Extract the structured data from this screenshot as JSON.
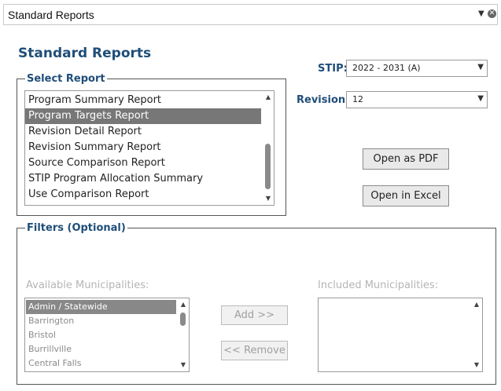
{
  "window": {
    "title": "Standard Reports"
  },
  "page": {
    "heading": "Standard Reports"
  },
  "select_report": {
    "legend": "Select Report",
    "items": [
      "Program Summary Report",
      "Program Targets Report",
      "Revision Detail Report",
      "Revision Summary Report",
      "Source Comparison Report",
      "STIP Program Allocation Summary",
      "Use Comparison Report"
    ],
    "selected": "Program Targets Report"
  },
  "stip": {
    "label": "STIP:",
    "value": "2022 - 2031 (A)"
  },
  "revision": {
    "label": "Revision:",
    "value": "12"
  },
  "buttons": {
    "open_pdf": "Open as PDF",
    "open_excel": "Open in Excel"
  },
  "filters": {
    "legend": "Filters (Optional)",
    "available_label": "Available Municipalities:",
    "included_label": "Included Municipalities:",
    "available": [
      "Admin / Statewide",
      "Barrington",
      "Bristol",
      "Burrillville",
      "Central Falls"
    ],
    "available_selected": "Admin / Statewide",
    "included": [],
    "add_label": "Add >>",
    "remove_label": "<< Remove"
  },
  "colors": {
    "accent": "#1f4e79",
    "selection": "#777777"
  }
}
